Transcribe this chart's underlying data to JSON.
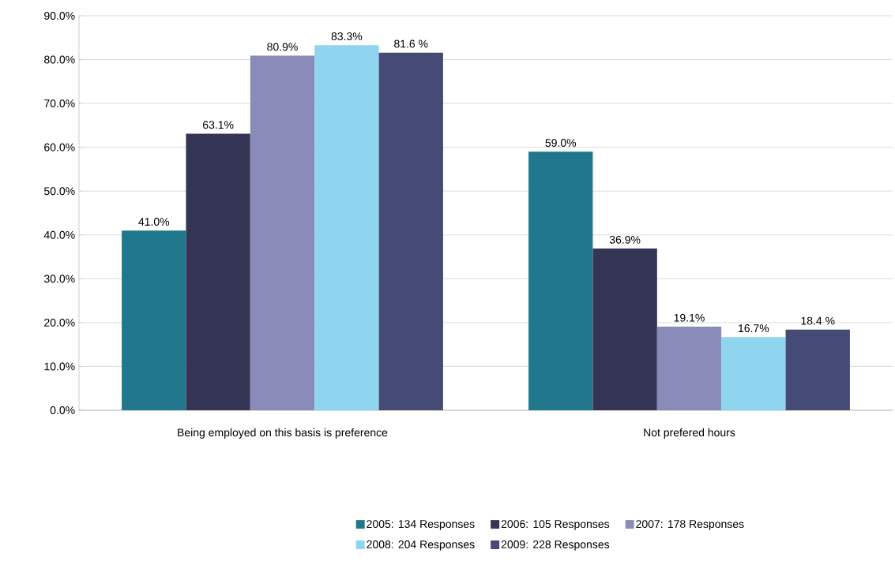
{
  "chart_data": {
    "type": "bar",
    "categories": [
      "Being employed on this basis is preference",
      "Not prefered hours"
    ],
    "series": [
      {
        "name": "2005: 134 Responses",
        "color": "#21788c",
        "values": [
          41.0,
          59.0
        ],
        "value_labels": [
          "41.0%",
          "59.0%"
        ]
      },
      {
        "name": "2006: 105 Responses",
        "color": "#343554",
        "values": [
          63.1,
          36.9
        ],
        "value_labels": [
          "63.1%",
          "36.9%"
        ]
      },
      {
        "name": "2007: 178 Responses",
        "color": "#8a8bb8",
        "values": [
          80.9,
          19.1
        ],
        "value_labels": [
          "80.9%",
          "19.1%"
        ]
      },
      {
        "name": "2008: 204 Responses",
        "color": "#8fd5f0",
        "values": [
          83.3,
          16.7
        ],
        "value_labels": [
          "83.3%",
          "16.7%"
        ]
      },
      {
        "name": "2009: 228 Responses",
        "color": "#464b75",
        "values": [
          81.6,
          18.4
        ],
        "value_labels": [
          "81.6 %",
          "18.4 %"
        ]
      }
    ],
    "ylim": [
      0,
      90
    ],
    "yticks": [
      {
        "value": 0,
        "label": "0.0%"
      },
      {
        "value": 10,
        "label": "10.0%"
      },
      {
        "value": 20,
        "label": "20.0%"
      },
      {
        "value": 30,
        "label": "30.0%"
      },
      {
        "value": 40,
        "label": "40.0%"
      },
      {
        "value": 50,
        "label": "50.0%"
      },
      {
        "value": 60,
        "label": "60.0%"
      },
      {
        "value": 70,
        "label": "70.0%"
      },
      {
        "value": 80,
        "label": "80.0%"
      },
      {
        "value": 90,
        "label": "90.0%"
      }
    ],
    "grid": "y",
    "legend": "bottom"
  }
}
